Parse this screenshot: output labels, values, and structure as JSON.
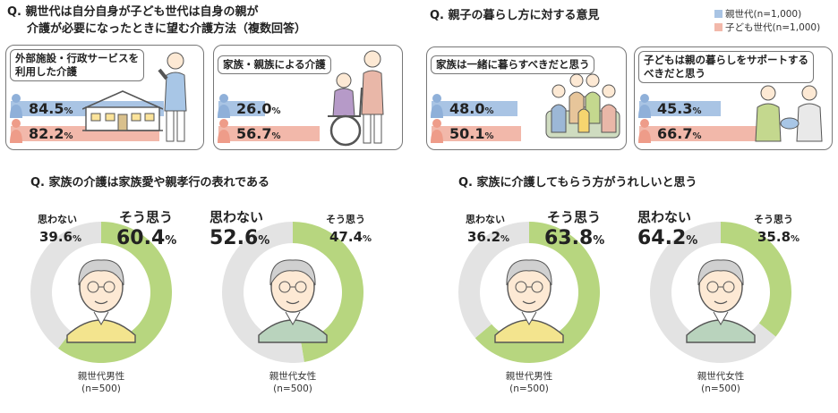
{
  "legend": {
    "parent_label": "親世代(n=1,000)",
    "child_label": "子ども世代(n=1,000)",
    "parent_color": "#a9c4e4",
    "child_color": "#f2b8aa"
  },
  "q1": {
    "title_line1": "Q. 親世代は自分自身が子ども世代は自身の親が",
    "title_line2": "介護が必要になったときに望む介護方法（複数回答）",
    "panels": [
      {
        "label_line1": "外部施設・行政サービスを",
        "label_line2": "利用した介護",
        "parent_value": 84.5,
        "child_value": 82.2,
        "parent_text": "84.5",
        "child_text": "82.2"
      },
      {
        "label_line1": "家族・親族による介護",
        "label_line2": "",
        "parent_value": 26.0,
        "child_value": 56.7,
        "parent_text": "26.0",
        "child_text": "56.7"
      }
    ]
  },
  "q2": {
    "title": "Q. 親子の暮らし方に対する意見",
    "panels": [
      {
        "label_line1": "家族は一緒に暮らすべきだと思う",
        "label_line2": "",
        "parent_value": 48.0,
        "child_value": 50.1,
        "parent_text": "48.0",
        "child_text": "50.1"
      },
      {
        "label_line1": "子どもは親の暮らしをサポートする",
        "label_line2": "べきだと思う",
        "parent_value": 45.3,
        "child_value": 66.7,
        "parent_text": "45.3",
        "child_text": "66.7"
      }
    ]
  },
  "pct_unit": "%",
  "q3": {
    "title": "Q. 家族の介護は家族愛や親孝行の表れである"
  },
  "q4": {
    "title": "Q. 家族に介護してもらう方がうれしいと思う"
  },
  "agree_label": "そう思う",
  "disagree_label": "思わない",
  "chart_data": [
    {
      "type": "pie",
      "question": "Q. 家族の介護は家族愛や親孝行の表れである",
      "group": "親世代男性",
      "n": "(n=500)",
      "labels": [
        "そう思う",
        "思わない"
      ],
      "values": [
        60.4,
        39.6
      ],
      "colors": [
        "#b7d67f",
        "#e3e3e3"
      ]
    },
    {
      "type": "pie",
      "question": "Q. 家族の介護は家族愛や親孝行の表れである",
      "group": "親世代女性",
      "n": "(n=500)",
      "labels": [
        "そう思う",
        "思わない"
      ],
      "values": [
        47.4,
        52.6
      ],
      "colors": [
        "#b7d67f",
        "#e3e3e3"
      ]
    },
    {
      "type": "pie",
      "question": "Q. 家族に介護してもらう方がうれしいと思う",
      "group": "親世代男性",
      "n": "(n=500)",
      "labels": [
        "そう思う",
        "思わない"
      ],
      "values": [
        63.8,
        36.2
      ],
      "colors": [
        "#b7d67f",
        "#e3e3e3"
      ]
    },
    {
      "type": "pie",
      "question": "Q. 家族に介護してもらう方がうれしいと思う",
      "group": "親世代女性",
      "n": "(n=500)",
      "labels": [
        "そう思う",
        "思わない"
      ],
      "values": [
        35.8,
        64.2
      ],
      "colors": [
        "#b7d67f",
        "#e3e3e3"
      ]
    }
  ]
}
